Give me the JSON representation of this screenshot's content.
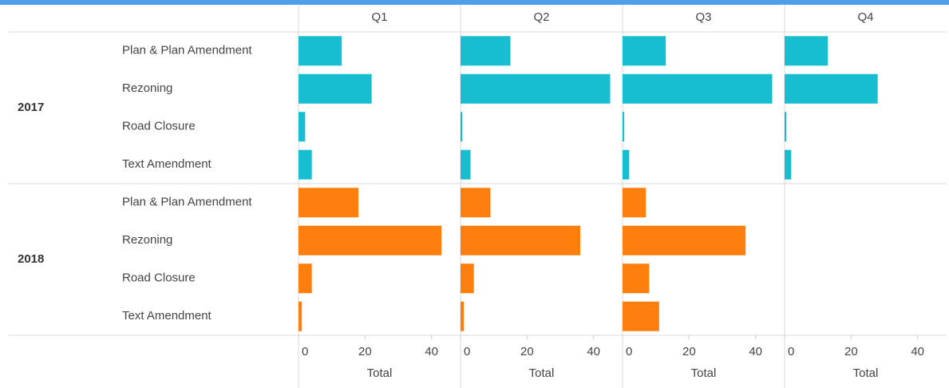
{
  "chart_data": {
    "type": "bar",
    "columns": [
      "Q1",
      "Q2",
      "Q3",
      "Q4"
    ],
    "categories": [
      "Plan & Plan Amendment",
      "Rezoning",
      "Road Closure",
      "Text Amendment"
    ],
    "series": [
      {
        "name": "2017",
        "color": "#17becf",
        "values": [
          [
            13,
            22,
            2,
            4
          ],
          [
            15,
            45,
            0.5,
            3
          ],
          [
            13,
            45,
            0.5,
            2
          ],
          [
            13,
            28,
            0.5,
            2
          ]
        ]
      },
      {
        "name": "2018",
        "color": "#ff7f0e",
        "values": [
          [
            18,
            43,
            4,
            1
          ],
          [
            9,
            36,
            4,
            1
          ],
          [
            7,
            37,
            8,
            11
          ],
          [
            null,
            null,
            null,
            null
          ]
        ]
      }
    ],
    "xlabel": "Total",
    "xlim": [
      0,
      48
    ],
    "xticks": [
      0,
      20,
      40
    ]
  }
}
